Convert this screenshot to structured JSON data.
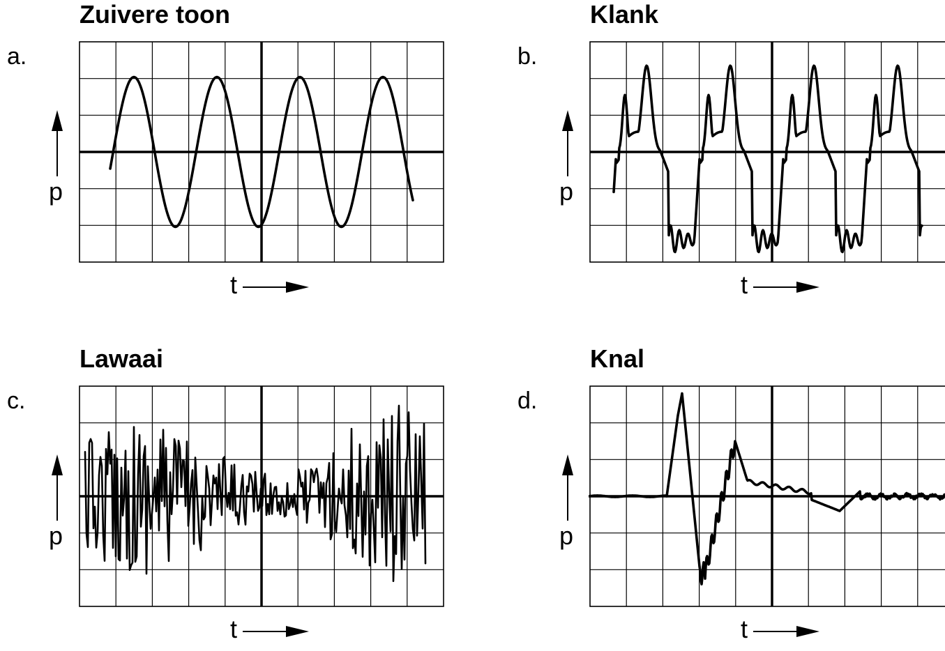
{
  "panels": [
    {
      "letter": "a.",
      "title": "Zuivere toon",
      "ylabel": "p",
      "xlabel": "t",
      "wave": "sine"
    },
    {
      "letter": "b.",
      "title": "Klank",
      "ylabel": "p",
      "xlabel": "t",
      "wave": "complex"
    },
    {
      "letter": "c.",
      "title": "Lawaai",
      "ylabel": "p",
      "xlabel": "t",
      "wave": "noise"
    },
    {
      "letter": "d.",
      "title": "Knal",
      "ylabel": "p",
      "xlabel": "t",
      "wave": "bang"
    }
  ],
  "colors": {
    "line": "#000000",
    "grid": "#000000",
    "background": "#ffffff"
  }
}
